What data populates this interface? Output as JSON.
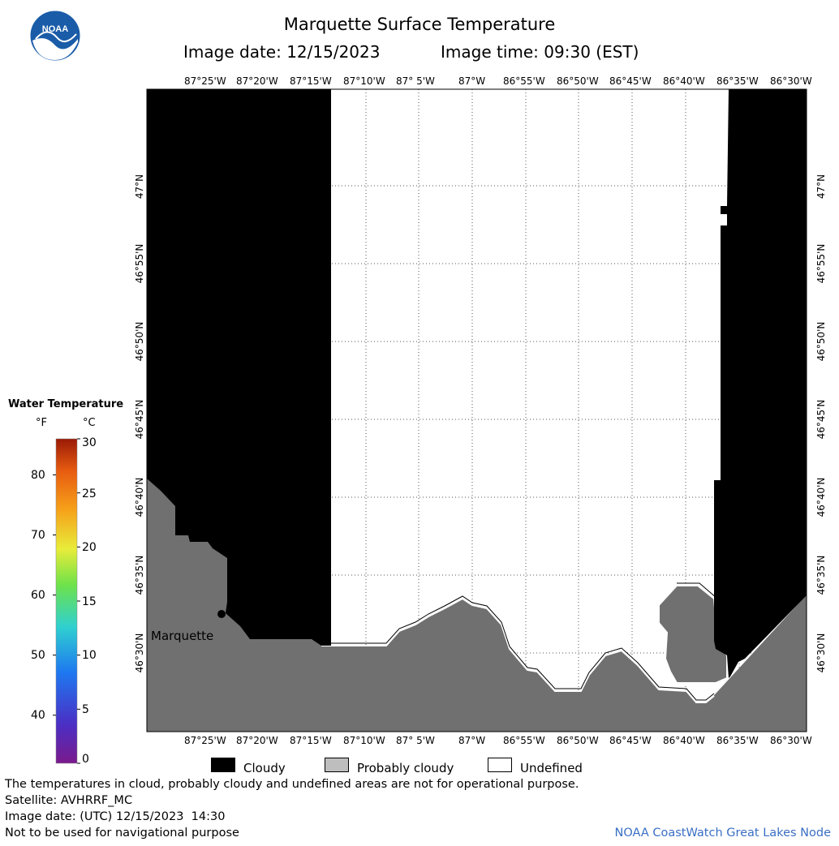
{
  "header": {
    "logo_text": "NOAA",
    "title": "Marquette Surface Temperature",
    "image_date": "Image date: 12/15/2023",
    "image_time": "Image time: 09:30 (EST)"
  },
  "map": {
    "lon_labels": [
      "87°25'W",
      "87°20'W",
      "87°15'W",
      "87°10'W",
      "87° 5'W",
      "87°W",
      "86°55'W",
      "86°50'W",
      "86°45'W",
      "86°40'W",
      "86°35'W",
      "86°30'W"
    ],
    "lat_labels": [
      "47°N",
      "46°55'N",
      "46°50'N",
      "46°45'N",
      "46°40'N",
      "46°35'N",
      "46°30'N"
    ],
    "place_label": "Marquette",
    "colors": {
      "cloudy": "#000000",
      "probably_cloudy": "#bebebe",
      "land": "#707070",
      "undefined": "#ffffff"
    }
  },
  "colorbar": {
    "title": "Water Temperature",
    "unit_f": "°F",
    "unit_c": "°C",
    "f_ticks": [
      "80",
      "70",
      "60",
      "50",
      "40"
    ],
    "c_ticks": [
      "30",
      "25",
      "20",
      "15",
      "10",
      "5",
      "0"
    ],
    "range_c": [
      0,
      30
    ]
  },
  "legend": {
    "cloudy": "Cloudy",
    "probably_cloudy": "Probably cloudy",
    "undefined": "Undefined"
  },
  "footer": {
    "note": "The temperatures in cloud, probably cloudy and undefined areas are not for operational purpose.",
    "satellite": "Satellite: AVHRRF_MC",
    "utc_date": "Image date: (UTC) 12/15/2023  14:30",
    "nav_warning": "Not to be used for navigational purpose",
    "credit": "NOAA CoastWatch Great Lakes Node"
  }
}
